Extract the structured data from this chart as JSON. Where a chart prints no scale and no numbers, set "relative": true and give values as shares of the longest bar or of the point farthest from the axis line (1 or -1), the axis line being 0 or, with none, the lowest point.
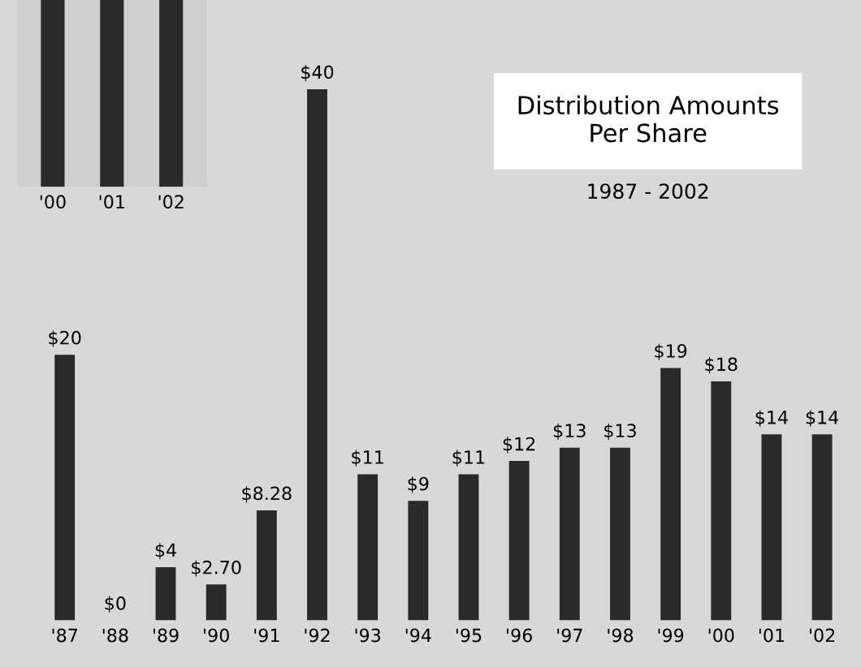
{
  "chart_data": [
    {
      "type": "bar",
      "relative": true,
      "categories": [
        "'00",
        "'01",
        "'02"
      ],
      "values": [
        1,
        1,
        1
      ],
      "color": "#2a2a2a"
    },
    {
      "type": "bar",
      "title": "Distribution Amounts\nPer Share",
      "subtitle": "1987 - 2002",
      "categories": [
        "'87",
        "'88",
        "'89",
        "'90",
        "'91",
        "'92",
        "'93",
        "'94",
        "'95",
        "'96",
        "'97",
        "'98",
        "'99",
        "'00",
        "'01",
        "'02"
      ],
      "values": [
        20,
        0,
        4,
        2.7,
        8.28,
        40,
        11,
        9,
        11,
        12,
        13,
        13,
        19,
        18,
        14,
        14
      ],
      "value_labels": [
        "$20",
        "$0",
        "$4",
        "$2.70",
        "$8.28",
        "$40",
        "$11",
        "$9",
        "$11",
        "$12",
        "$13",
        "$13",
        "$19",
        "$18",
        "$14",
        "$14"
      ],
      "color": "#2a2a2a"
    }
  ]
}
